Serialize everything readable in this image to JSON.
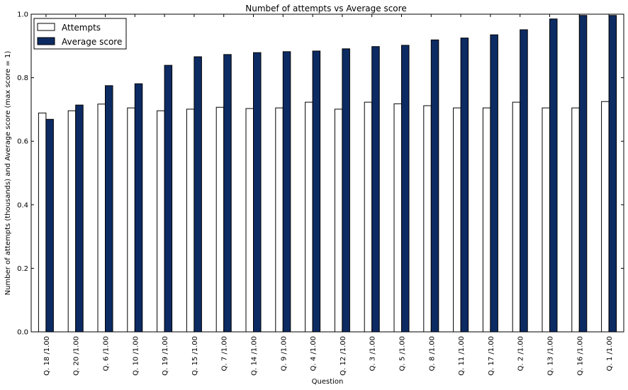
{
  "chart_data": {
    "type": "bar",
    "title": "Numbef of attempts vs Average score",
    "xlabel": "Question",
    "ylabel": "Number of attempts (thousands) and Average score (max score = 1)",
    "ylim": [
      0,
      1.0
    ],
    "yticks": [
      "0.0",
      "0.2",
      "0.4",
      "0.6",
      "0.8",
      "1.0"
    ],
    "grid": false,
    "legend_position": "top-left",
    "categories": [
      "Q. 18 /1.00",
      "Q. 20 /1.00",
      "Q. 6 /1.00",
      "Q. 10 /1.00",
      "Q. 19 /1.00",
      "Q. 15 /1.00",
      "Q. 7 /1.00",
      "Q. 14 /1.00",
      "Q. 9 /1.00",
      "Q. 4 /1.00",
      "Q. 12 /1.00",
      "Q. 3 /1.00",
      "Q. 5 /1.00",
      "Q. 8 /1.00",
      "Q. 11 /1.00",
      "Q. 17 /1.00",
      "Q. 2 /1.00",
      "Q. 13 /1.00",
      "Q. 16 /1.00",
      "Q. 1 /1.00"
    ],
    "series": [
      {
        "name": "Attempts",
        "color": "#ffffff",
        "values": [
          0.689,
          0.696,
          0.717,
          0.705,
          0.696,
          0.701,
          0.707,
          0.703,
          0.705,
          0.723,
          0.701,
          0.723,
          0.718,
          0.712,
          0.705,
          0.705,
          0.723,
          0.705,
          0.705,
          0.725
        ]
      },
      {
        "name": "Average score",
        "color": "#0d2b63",
        "values": [
          0.669,
          0.714,
          0.775,
          0.781,
          0.839,
          0.866,
          0.873,
          0.879,
          0.882,
          0.884,
          0.891,
          0.898,
          0.902,
          0.919,
          0.925,
          0.935,
          0.951,
          0.985,
          0.996,
          0.996
        ]
      }
    ]
  }
}
